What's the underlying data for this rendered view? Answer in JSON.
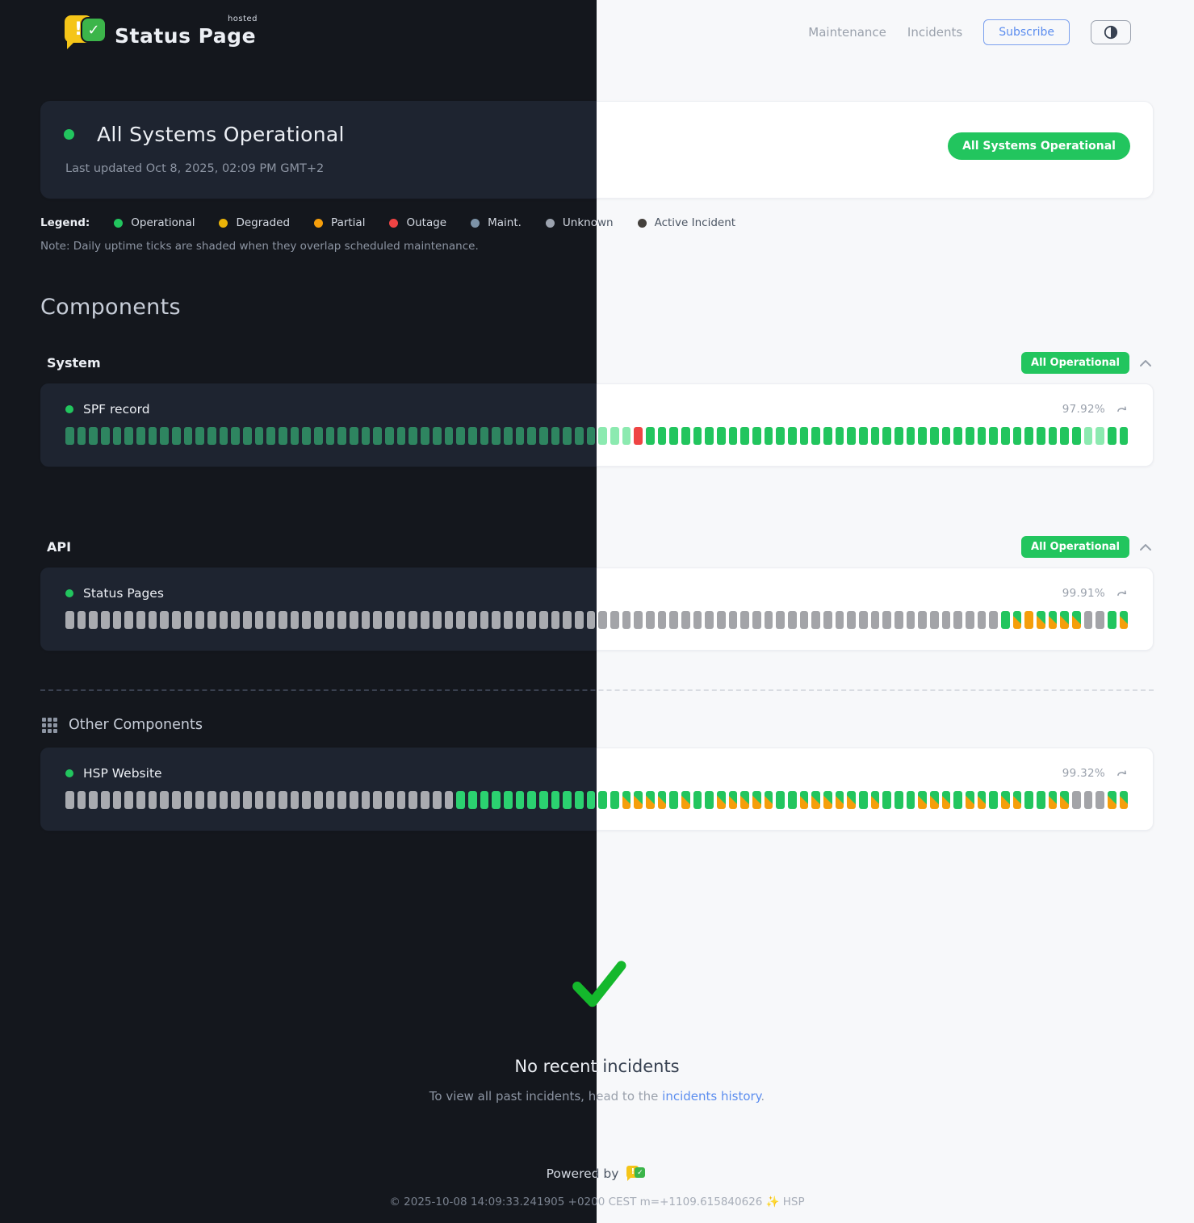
{
  "brand": {
    "name": "Status Page",
    "hosted_tag": "hosted",
    "bang": "!",
    "check": "✓"
  },
  "nav": {
    "maintenance": "Maintenance",
    "incidents": "Incidents",
    "subscribe": "Subscribe"
  },
  "hero": {
    "title": "All Systems Operational",
    "last_updated": "Last updated Oct 8, 2025, 02:09 PM GMT+2",
    "badge": "All Systems Operational"
  },
  "legend": {
    "label": "Legend:",
    "items": [
      {
        "label": "Operational",
        "color": "#22c55e"
      },
      {
        "label": "Degraded",
        "color": "#eab308"
      },
      {
        "label": "Partial",
        "color": "#f59e0b"
      },
      {
        "label": "Outage",
        "color": "#ef4444"
      },
      {
        "label": "Maint.",
        "color": "#7d93a8"
      },
      {
        "label": "Unknown",
        "color": "#9ca3af"
      },
      {
        "label": "Active Incident",
        "color": "#3a332c"
      }
    ],
    "note": "Note: Daily uptime ticks are shaded when they overlap scheduled maintenance."
  },
  "components": {
    "title": "Components",
    "groups": [
      {
        "name": "System",
        "badge": "All Operational",
        "items": [
          {
            "name": "SPF record",
            "uptime": "97.92%",
            "ticks": "oooooooooooooooooooooooooooooooooooooooooooooppproooooooooooooooooooooooooooooooooooooppoo"
          }
        ]
      },
      {
        "name": "API",
        "badge": "All Operational",
        "items": [
          {
            "name": "Status Pages",
            "uptime": "99.91%",
            "ticks": "uuuuuuuuuuuuuuuuuuuuuuuuuuuuuuuuuuuuuuuuuuuuuuuuuuuuuuuuuuuuuuuuuuuuuuuuuuuuuuugmdmmmmuugm"
          }
        ]
      }
    ],
    "other": {
      "title": "Other Components",
      "items": [
        {
          "name": "HSP Website",
          "uptime": "99.32%",
          "ticks": "uuuuuuuuuuuuuuuuuuuuuuuuuuuuuuuuuggggggggggggggmmmmgmggmmmmmggmmmmmgmgggmmmgmmgmmggmmuuumm"
        }
      ]
    }
  },
  "incidents_section": {
    "title": "No recent incidents",
    "subtext_before": "To view all past incidents, head to the ",
    "link_text": "incidents history",
    "subtext_after": "."
  },
  "footer": {
    "powered_by": "Powered by",
    "copyright": "© 2025-10-08 14:09:33.241905 +0200 CEST m=+1109.615840626 ✨ HSP"
  },
  "colors": {
    "operational_green": "#22c55e",
    "outage_red": "#ef4444",
    "maintenance_orange": "#f59e0b",
    "unknown_gray": "#a3a4a8",
    "brand_yellow": "#f5c518",
    "brand_green": "#3cb54a",
    "link_blue": "#5b8def",
    "check_green": "#14b82c"
  }
}
